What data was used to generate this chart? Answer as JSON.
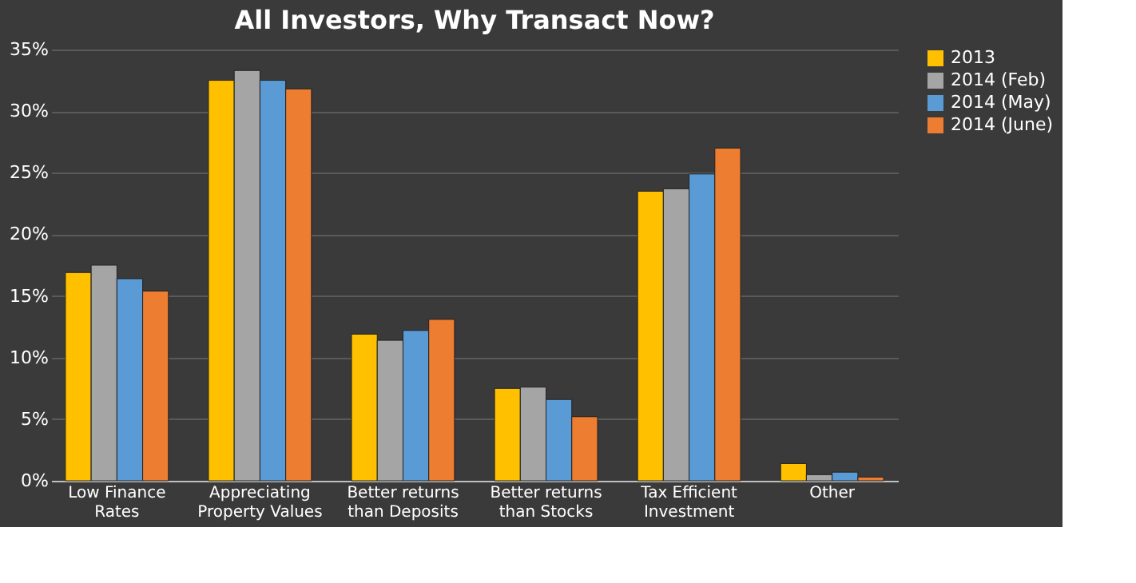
{
  "chart_data": {
    "type": "bar",
    "title": "All Investors,  Why Transact  Now?",
    "categories": [
      "Low Finance Rates",
      "Appreciating Property Values",
      "Better returns than Deposits",
      "Better returns than Stocks",
      "Tax Efficient Investment",
      "Other"
    ],
    "series": [
      {
        "name": "2013",
        "color": "#ffc000",
        "values": [
          16.9,
          32.5,
          11.9,
          7.5,
          23.5,
          1.4
        ]
      },
      {
        "name": "2014 (Feb)",
        "color": "#a5a5a5",
        "values": [
          17.5,
          33.3,
          11.4,
          7.6,
          23.7,
          0.5
        ]
      },
      {
        "name": "2014 (May)",
        "color": "#5b9bd5",
        "values": [
          16.4,
          32.5,
          12.2,
          6.6,
          24.9,
          0.7
        ]
      },
      {
        "name": "2014 (June)",
        "color": "#ed7d31",
        "values": [
          15.4,
          31.8,
          13.1,
          5.2,
          27.0,
          0.3
        ]
      }
    ],
    "ylim": [
      0,
      35
    ],
    "yticks": [
      {
        "value": 0,
        "label": "0%"
      },
      {
        "value": 5,
        "label": "5%"
      },
      {
        "value": 10,
        "label": "10%"
      },
      {
        "value": 15,
        "label": "15%"
      },
      {
        "value": 20,
        "label": "20%"
      },
      {
        "value": 25,
        "label": "25%"
      },
      {
        "value": 30,
        "label": "30%"
      },
      {
        "value": 35,
        "label": "35%"
      }
    ],
    "grid": "y",
    "legend": "right"
  }
}
